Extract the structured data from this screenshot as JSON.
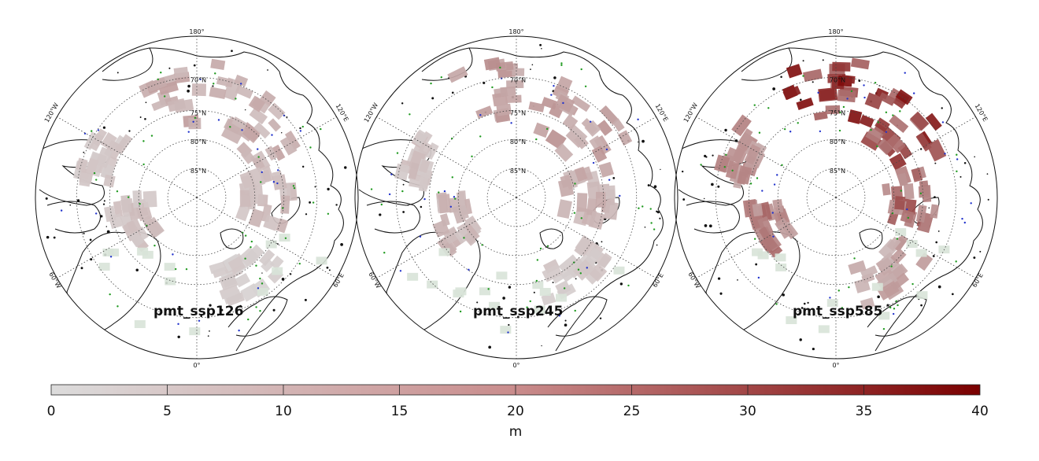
{
  "figure": {
    "panels": [
      {
        "name": "pmt_ssp126",
        "intensity": 0.28
      },
      {
        "name": "pmt_ssp245",
        "intensity": 0.36
      },
      {
        "name": "pmt_ssp585",
        "intensity": 0.95
      }
    ],
    "lat_labels": [
      "70°N",
      "75°N",
      "80°N",
      "85°N"
    ],
    "lon_labels": {
      "top": "180°",
      "bottom": "0°",
      "upper_left": "120°W",
      "upper_right": "120°E",
      "lower_left": "60°W",
      "lower_right": "60°E"
    },
    "colorbar": {
      "ticks": [
        "0",
        "5",
        "10",
        "15",
        "20",
        "25",
        "30",
        "35",
        "40"
      ],
      "range": [
        0,
        40
      ],
      "label": "m",
      "color_low": "#dcdcdc",
      "color_high": "#7a0000"
    }
  }
}
